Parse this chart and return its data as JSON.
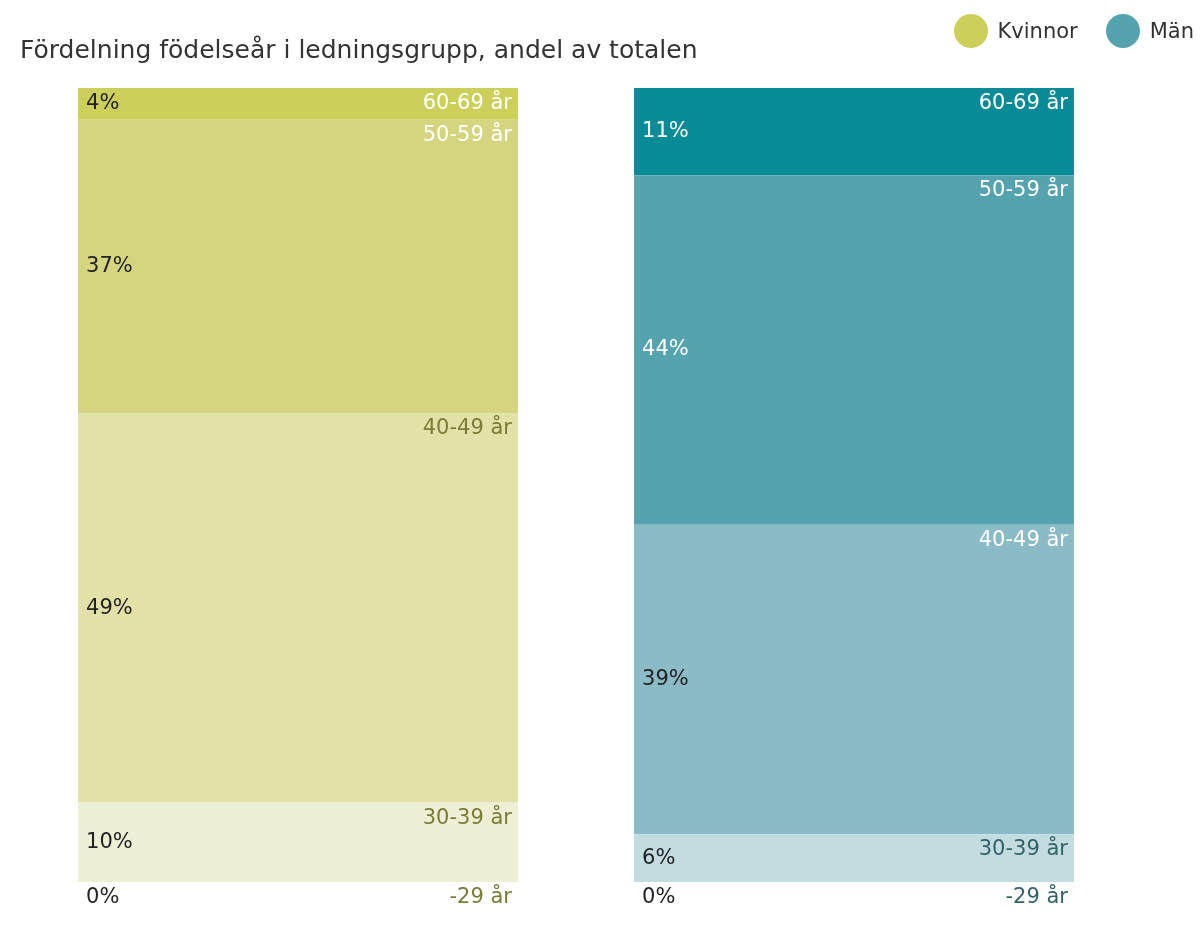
{
  "chart_data": {
    "type": "bar",
    "stacked": true,
    "title": "Fördelning födelseår i ledningsgrupp, andel av totalen",
    "categories": [
      null,
      null
    ],
    "annotations": [
      "Kvinnor",
      "Män"
    ],
    "colors": [
      "#cccf5a",
      "#55a3af"
    ],
    "tick_labels": false,
    "series": [
      {
        "name": "-29 år",
        "colors": [
          "#f4f4e2",
          "#dcebee"
        ],
        "values": [
          0,
          0
        ],
        "value_labels": [
          "0%",
          "0%"
        ]
      },
      {
        "name": "30-39 år",
        "colors": [
          "#eeefd4",
          "#c2dce0"
        ],
        "values": [
          10,
          6
        ],
        "value_labels": [
          "10%",
          "6%"
        ]
      },
      {
        "name": "40-49 år",
        "colors": [
          "#e2e2a8",
          "#8abbc6"
        ],
        "values": [
          49,
          39
        ],
        "value_labels": [
          "49%",
          "39%"
        ]
      },
      {
        "name": "50-59 år",
        "colors": [
          "#d6d57f",
          "#55a3af"
        ],
        "values": [
          37,
          44
        ],
        "value_labels": [
          "37%",
          "44%"
        ]
      },
      {
        "name": "60-69 år",
        "colors": [
          "#cccf5a",
          "#078b97"
        ],
        "values": [
          4,
          11
        ],
        "value_labels": [
          "4%",
          "11%"
        ]
      }
    ]
  }
}
